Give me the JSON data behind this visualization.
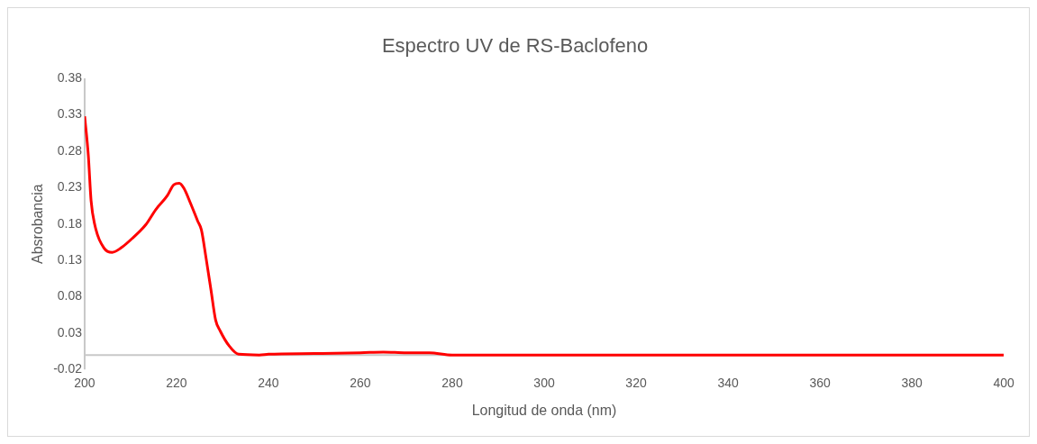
{
  "chart_data": {
    "type": "line",
    "title": "Espectro UV de RS-Baclofeno",
    "xlabel": "Longitud de onda (nm)",
    "ylabel": "Absrobancia",
    "series": [
      {
        "color": "#ff0000",
        "x": [
          200,
          200.8,
          201.4,
          202.2,
          204.2,
          206.0,
          207.9,
          210.5,
          213.3,
          215.5,
          218.0,
          219.4,
          220.6,
          221.6,
          223.0,
          224.6,
          225.4,
          226.4,
          227.5,
          228.5,
          229.5,
          231.5,
          233.5,
          238,
          240,
          250,
          260,
          265,
          270,
          275,
          280,
          300,
          320,
          340,
          360,
          380,
          400
        ],
        "values": [
          0.328,
          0.274,
          0.212,
          0.179,
          0.147,
          0.141,
          0.147,
          0.161,
          0.179,
          0.2,
          0.219,
          0.234,
          0.236,
          0.229,
          0.209,
          0.184,
          0.172,
          0.134,
          0.089,
          0.048,
          0.033,
          0.012,
          0.001,
          0,
          0.001,
          0.002,
          0.003,
          0.004,
          0.003,
          0.003,
          0,
          0,
          0,
          0,
          0,
          0,
          0
        ]
      }
    ],
    "xlim": [
      200,
      400
    ],
    "xticks": [
      200,
      220,
      240,
      260,
      280,
      300,
      320,
      340,
      360,
      380,
      400
    ],
    "ylim": [
      -0.02,
      0.38
    ],
    "yticks": [
      -0.02,
      0.03,
      0.08,
      0.13,
      0.18,
      0.23,
      0.28,
      0.33,
      0.38
    ],
    "grid": false,
    "legend": false,
    "marker": "none",
    "line_style": "solid"
  }
}
